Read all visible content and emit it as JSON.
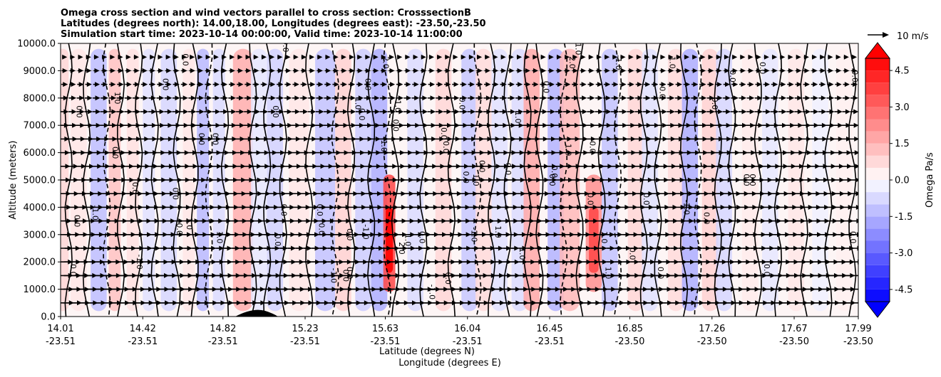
{
  "chart_data": {
    "type": "heatmap",
    "title_lines": [
      "Omega cross section and wind vectors parallel to cross section: CrosssectionB",
      "Latitudes (degrees north): 14.00,18.00, Longitudes (degrees east): -23.50,-23.50",
      "Simulation start time: 2023-10-14 00:00:00, Valid time: 2023-10-14 11:00:00"
    ],
    "ylabel": "Altitude (meters)",
    "xlabel_lat": "Latitude (degrees N)",
    "xlabel_lon": "Longitude (degrees E)",
    "ylim": [
      0,
      10000
    ],
    "yticks": [
      "0.0",
      "1000.0",
      "2000.0",
      "3000.0",
      "4000.0",
      "5000.0",
      "6000.0",
      "7000.0",
      "8000.0",
      "9000.0",
      "10000.0"
    ],
    "xlim": [
      14.01,
      17.99
    ],
    "xticks_lat": [
      "14.01",
      "14.42",
      "14.82",
      "15.23",
      "15.63",
      "16.04",
      "16.45",
      "16.85",
      "17.26",
      "17.67",
      "17.99"
    ],
    "xticks_lon": [
      "-23.51",
      "-23.51",
      "-23.51",
      "-23.51",
      "-23.51",
      "-23.51",
      "-23.51",
      "-23.50",
      "-23.50",
      "-23.50",
      "-23.50"
    ],
    "xtick_values": [
      14.01,
      14.42,
      14.82,
      15.23,
      15.63,
      16.04,
      16.45,
      16.85,
      17.26,
      17.67,
      17.99
    ],
    "grid": "horizontal",
    "colorbar": {
      "label": "Omega Pa/s",
      "ticks": [
        "-4.5",
        "-3.0",
        "-1.5",
        "0.0",
        "1.5",
        "3.0",
        "4.5"
      ],
      "tick_values": [
        -4.5,
        -3.0,
        -1.5,
        0.0,
        1.5,
        3.0,
        4.5
      ],
      "range": [
        -5,
        5
      ],
      "extend": "both",
      "colormap": "bwr"
    },
    "quiver_key_label": "10 m/s",
    "omega_columns": [
      {
        "x": 14.02,
        "w": 0.03,
        "v": 0.8
      },
      {
        "x": 14.1,
        "w": 0.04,
        "v": 0.5
      },
      {
        "x": 14.2,
        "w": 0.04,
        "v": -1.3
      },
      {
        "x": 14.28,
        "w": 0.03,
        "v": 1.2
      },
      {
        "x": 14.37,
        "w": 0.03,
        "v": 0.6
      },
      {
        "x": 14.45,
        "w": 0.03,
        "v": -0.6
      },
      {
        "x": 14.55,
        "w": 0.04,
        "v": -0.8
      },
      {
        "x": 14.65,
        "w": 0.03,
        "v": 0.5
      },
      {
        "x": 14.72,
        "w": 0.03,
        "v": -1.4
      },
      {
        "x": 14.8,
        "w": 0.03,
        "v": -0.7
      },
      {
        "x": 14.92,
        "w": 0.05,
        "v": 1.6
      },
      {
        "x": 15.0,
        "w": 0.04,
        "v": -0.5
      },
      {
        "x": 15.08,
        "w": 0.04,
        "v": -0.9
      },
      {
        "x": 15.2,
        "w": 0.05,
        "v": 0.5
      },
      {
        "x": 15.33,
        "w": 0.05,
        "v": -1.2
      },
      {
        "x": 15.42,
        "w": 0.04,
        "v": 0.9
      },
      {
        "x": 15.52,
        "w": 0.04,
        "v": -1.0
      },
      {
        "x": 15.6,
        "w": 0.04,
        "v": -1.6
      },
      {
        "x": 15.65,
        "w": 0.03,
        "v": 3.6
      },
      {
        "x": 15.78,
        "w": 0.04,
        "v": -0.7
      },
      {
        "x": 15.92,
        "w": 0.04,
        "v": 0.8
      },
      {
        "x": 16.05,
        "w": 0.04,
        "v": -1.1
      },
      {
        "x": 16.12,
        "w": 0.04,
        "v": 0.7
      },
      {
        "x": 16.2,
        "w": 0.04,
        "v": -0.6
      },
      {
        "x": 16.3,
        "w": 0.04,
        "v": -0.7
      },
      {
        "x": 16.36,
        "w": 0.04,
        "v": 1.7
      },
      {
        "x": 16.48,
        "w": 0.04,
        "v": -1.5
      },
      {
        "x": 16.55,
        "w": 0.05,
        "v": 1.4
      },
      {
        "x": 16.67,
        "w": 0.04,
        "v": 2.2
      },
      {
        "x": 16.75,
        "w": 0.04,
        "v": -1.2
      },
      {
        "x": 16.88,
        "w": 0.04,
        "v": 0.8
      },
      {
        "x": 16.95,
        "w": 0.04,
        "v": -0.6
      },
      {
        "x": 17.08,
        "w": 0.04,
        "v": 0.7
      },
      {
        "x": 17.15,
        "w": 0.04,
        "v": -1.6
      },
      {
        "x": 17.25,
        "w": 0.04,
        "v": 0.9
      },
      {
        "x": 17.32,
        "w": 0.04,
        "v": -0.8
      },
      {
        "x": 17.45,
        "w": 0.04,
        "v": 0.4
      },
      {
        "x": 17.55,
        "w": 0.04,
        "v": -0.5
      },
      {
        "x": 17.68,
        "w": 0.04,
        "v": 0.5
      },
      {
        "x": 17.8,
        "w": 0.04,
        "v": -0.3
      },
      {
        "x": 17.92,
        "w": 0.04,
        "v": 0.3
      }
    ],
    "contour_labels": [
      {
        "text": "0.0",
        "x": 14.09,
        "y": 7500
      },
      {
        "text": "0.0",
        "x": 14.27,
        "y": 6000
      },
      {
        "text": "1.0",
        "x": 14.28,
        "y": 8000
      },
      {
        "text": "0.0",
        "x": 14.52,
        "y": 8500
      },
      {
        "text": "0.0",
        "x": 14.62,
        "y": 9400
      },
      {
        "text": "-1.0",
        "x": 14.17,
        "y": 3800
      },
      {
        "text": "0.0",
        "x": 14.08,
        "y": 3500
      },
      {
        "text": "0.0",
        "x": 14.06,
        "y": 1700
      },
      {
        "text": "-1.0",
        "x": 14.39,
        "y": 2000
      },
      {
        "text": "0.0",
        "x": 14.37,
        "y": 4700
      },
      {
        "text": "0.0",
        "x": 14.57,
        "y": 4500
      },
      {
        "text": "0.0",
        "x": 14.59,
        "y": 3200
      },
      {
        "text": "1.0",
        "x": 14.64,
        "y": 3400
      },
      {
        "text": "0.0",
        "x": 14.7,
        "y": 6500
      },
      {
        "text": "0.0",
        "x": 14.77,
        "y": 6500
      },
      {
        "text": "1.0",
        "x": 14.79,
        "y": 2900
      },
      {
        "text": "0.0",
        "x": 15.3,
        "y": 3200
      },
      {
        "text": "0.0",
        "x": 15.08,
        "y": 2800
      },
      {
        "text": "0.0",
        "x": 15.11,
        "y": 3900
      },
      {
        "text": "0.0",
        "x": 15.07,
        "y": 7500
      },
      {
        "text": "0.0",
        "x": 15.29,
        "y": 3900
      },
      {
        "text": "0.0",
        "x": 15.42,
        "y": 1500
      },
      {
        "text": "0.0",
        "x": 15.5,
        "y": 7400
      },
      {
        "text": "1.0",
        "x": 15.48,
        "y": 7800
      },
      {
        "text": "-1.0",
        "x": 15.36,
        "y": 1500
      },
      {
        "text": "0.0",
        "x": 15.44,
        "y": 3000
      },
      {
        "text": "-1.0",
        "x": 15.52,
        "y": 3100
      },
      {
        "text": "0.0",
        "x": 15.53,
        "y": 8500
      },
      {
        "text": "2.0",
        "x": 15.62,
        "y": 9300
      },
      {
        "text": "0.0",
        "x": 15.67,
        "y": 7000
      },
      {
        "text": "1.0",
        "x": 15.68,
        "y": 7700
      },
      {
        "text": "-1.0",
        "x": 15.61,
        "y": 6300
      },
      {
        "text": "0.0",
        "x": 15.8,
        "y": 2900
      },
      {
        "text": "2.0",
        "x": 15.7,
        "y": 2500
      },
      {
        "text": "1.0",
        "x": 15.73,
        "y": 2800
      },
      {
        "text": "-1.0",
        "x": 15.85,
        "y": 900
      },
      {
        "text": "0.0",
        "x": 15.93,
        "y": 1400
      },
      {
        "text": "0.0",
        "x": 15.92,
        "y": 6200
      },
      {
        "text": "0.0",
        "x": 15.91,
        "y": 6700
      },
      {
        "text": "0.0",
        "x": 16.02,
        "y": 5100
      },
      {
        "text": "0.0",
        "x": 16.0,
        "y": 7800
      },
      {
        "text": "-1.0",
        "x": 16.06,
        "y": 3000
      },
      {
        "text": "0.0",
        "x": 16.1,
        "y": 5500
      },
      {
        "text": "1.0",
        "x": 16.07,
        "y": 5000
      },
      {
        "text": "1.0",
        "x": 16.18,
        "y": 3100
      },
      {
        "text": "0.0",
        "x": 16.23,
        "y": 5400
      },
      {
        "text": "1.0",
        "x": 16.3,
        "y": 2300
      },
      {
        "text": "1.0",
        "x": 16.28,
        "y": 7300
      },
      {
        "text": "0.0",
        "x": 16.42,
        "y": 8400
      },
      {
        "text": "0.0",
        "x": 16.45,
        "y": 5000
      },
      {
        "text": "0.0",
        "x": 16.46,
        "y": 5300
      },
      {
        "text": "1.0",
        "x": 16.53,
        "y": 6100
      },
      {
        "text": "2.0",
        "x": 16.55,
        "y": 9300
      },
      {
        "text": "1.0",
        "x": 16.58,
        "y": 9800
      },
      {
        "text": "0.0",
        "x": 16.65,
        "y": 6200
      },
      {
        "text": "0.0",
        "x": 16.64,
        "y": 4300
      },
      {
        "text": "1.0",
        "x": 16.71,
        "y": 2900
      },
      {
        "text": "1.0",
        "x": 16.73,
        "y": 1600
      },
      {
        "text": "-1.0",
        "x": 16.78,
        "y": 9300
      },
      {
        "text": "0.0",
        "x": 16.85,
        "y": 2300
      },
      {
        "text": "0.0",
        "x": 17.0,
        "y": 8200
      },
      {
        "text": "1.0",
        "x": 17.05,
        "y": 9300
      },
      {
        "text": "0.0",
        "x": 16.92,
        "y": 4300
      },
      {
        "text": "0.0",
        "x": 16.99,
        "y": 1600
      },
      {
        "text": "-1.0",
        "x": 17.12,
        "y": 4000
      },
      {
        "text": "0.0",
        "x": 17.22,
        "y": 3600
      },
      {
        "text": "0.0",
        "x": 17.26,
        "y": 7800
      },
      {
        "text": "0.0",
        "x": 17.35,
        "y": 8800
      },
      {
        "text": "0.0",
        "x": 17.42,
        "y": 5000
      },
      {
        "text": "0.0",
        "x": 17.45,
        "y": 5000
      },
      {
        "text": "0.0",
        "x": 17.52,
        "y": 1700
      },
      {
        "text": "0.0",
        "x": 17.5,
        "y": 9100
      },
      {
        "text": "0.0",
        "x": 17.95,
        "y": 2900
      },
      {
        "text": "0.0",
        "x": 17.96,
        "y": 8800
      },
      {
        "text": "0.0",
        "x": 15.44,
        "y": 1600
      },
      {
        "text": "0.0",
        "x": 15.12,
        "y": 9900
      }
    ],
    "wind_field": {
      "x_step": 0.0398,
      "levels": [
        500,
        1000,
        1500,
        2000,
        2500,
        3000,
        3500,
        4000,
        4500,
        5000,
        5500,
        6000,
        6500,
        7000,
        7500,
        8000,
        8500,
        9000,
        9500
      ],
      "near_surface_speed_m_s": 11,
      "upper_speed_m_s": 3
    }
  }
}
